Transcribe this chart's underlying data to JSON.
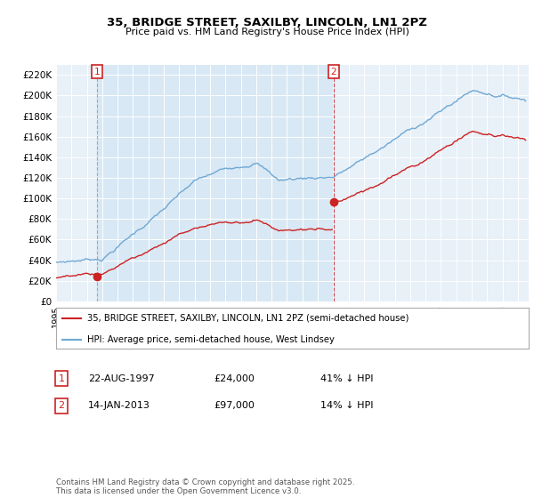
{
  "title": "35, BRIDGE STREET, SAXILBY, LINCOLN, LN1 2PZ",
  "subtitle": "Price paid vs. HM Land Registry's House Price Index (HPI)",
  "ylim": [
    0,
    230000
  ],
  "yticks": [
    0,
    20000,
    40000,
    60000,
    80000,
    100000,
    120000,
    140000,
    160000,
    180000,
    200000,
    220000
  ],
  "ytick_labels": [
    "£0",
    "£20K",
    "£40K",
    "£60K",
    "£80K",
    "£100K",
    "£120K",
    "£140K",
    "£160K",
    "£180K",
    "£200K",
    "£220K"
  ],
  "hpi_color": "#6fa8d4",
  "price_color": "#cc2222",
  "vline1_color": "#999999",
  "vline2_color": "#cc2222",
  "shade_color": "#d8e8f4",
  "sale1_year": 1997.64,
  "sale2_year": 2013.04,
  "sale1_price": 24000,
  "sale2_price": 97000,
  "sale1_label": "1",
  "sale1_date": "22-AUG-1997",
  "sale1_price_str": "£24,000",
  "sale1_hpi": "41% ↓ HPI",
  "sale2_label": "2",
  "sale2_date": "14-JAN-2013",
  "sale2_price_str": "£97,000",
  "sale2_hpi": "14% ↓ HPI",
  "legend_line1": "35, BRIDGE STREET, SAXILBY, LINCOLN, LN1 2PZ (semi-detached house)",
  "legend_line2": "HPI: Average price, semi-detached house, West Lindsey",
  "footer": "Contains HM Land Registry data © Crown copyright and database right 2025.\nThis data is licensed under the Open Government Licence v3.0.",
  "background_color": "#ffffff",
  "plot_bg_color": "#e8f0f8"
}
